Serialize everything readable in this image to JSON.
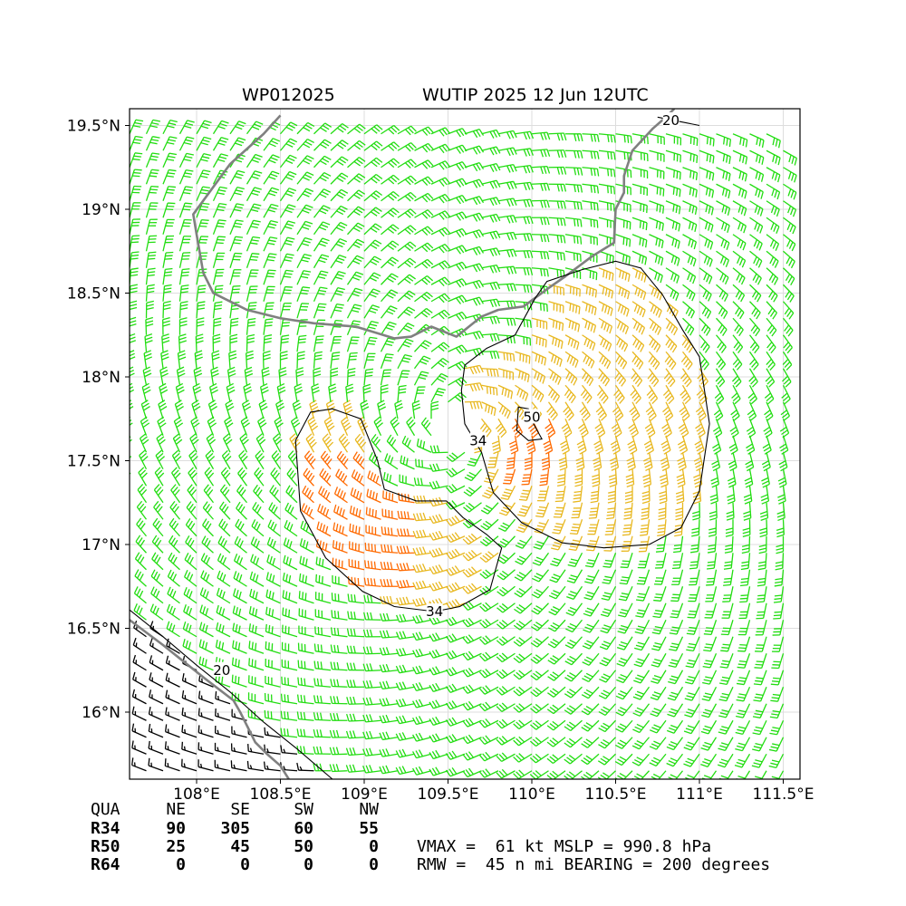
{
  "chart_data": {
    "type": "wind-barb-map",
    "title_left": "WP012025",
    "title_right": "WUTIP 2025 12 Jun 12UTC",
    "xlim": [
      107.6,
      111.6
    ],
    "ylim": [
      15.6,
      19.6
    ],
    "x_ticks": [
      {
        "value": 108.0,
        "label": "108°E"
      },
      {
        "value": 108.5,
        "label": "108.5°E"
      },
      {
        "value": 109.0,
        "label": "109°E"
      },
      {
        "value": 109.5,
        "label": "109.5°E"
      },
      {
        "value": 110.0,
        "label": "110°E"
      },
      {
        "value": 110.5,
        "label": "110.5°E"
      },
      {
        "value": 111.0,
        "label": "111°E"
      },
      {
        "value": 111.5,
        "label": "111.5°E"
      }
    ],
    "y_ticks": [
      {
        "value": 16.0,
        "label": "16°N"
      },
      {
        "value": 16.5,
        "label": "16.5°N"
      },
      {
        "value": 17.0,
        "label": "17°N"
      },
      {
        "value": 17.5,
        "label": "17.5°N"
      },
      {
        "value": 18.0,
        "label": "18°N"
      },
      {
        "value": 18.5,
        "label": "18.5°N"
      },
      {
        "value": 19.0,
        "label": "19°N"
      },
      {
        "value": 19.5,
        "label": "19.5°N"
      }
    ],
    "grid": true,
    "storm_center": {
      "lon": 109.55,
      "lat": 17.7
    },
    "rmw_nmi": 45,
    "wind_thresholds_kt": [
      34,
      50
    ],
    "barb_colors": {
      "below_34": "#22dd11",
      "34_to_50": "#e8b820",
      "above_50": "#ff6a00",
      "outside": "#000000"
    },
    "contours": [
      {
        "level": 34,
        "label": "34",
        "ring": [
          [
            109.49,
            17.26
          ],
          [
            109.31,
            17.26
          ],
          [
            109.12,
            17.33
          ],
          [
            109.08,
            17.5
          ],
          [
            108.98,
            17.75
          ],
          [
            108.81,
            17.81
          ],
          [
            108.68,
            17.79
          ],
          [
            108.59,
            17.62
          ],
          [
            108.62,
            17.2
          ],
          [
            108.77,
            16.92
          ],
          [
            108.99,
            16.72
          ],
          [
            109.18,
            16.63
          ],
          [
            109.42,
            16.6
          ],
          [
            109.57,
            16.63
          ],
          [
            109.75,
            16.73
          ],
          [
            109.82,
            16.98
          ],
          [
            109.73,
            17.06
          ],
          [
            109.59,
            17.16
          ]
        ]
      },
      {
        "level": 34,
        "label": "34",
        "ring": [
          [
            109.7,
            17.55
          ],
          [
            109.77,
            17.31
          ],
          [
            109.94,
            17.13
          ],
          [
            110.18,
            17.01
          ],
          [
            110.43,
            16.98
          ],
          [
            110.7,
            17.0
          ],
          [
            110.89,
            17.1
          ],
          [
            111.0,
            17.32
          ],
          [
            111.06,
            17.72
          ],
          [
            111.0,
            18.12
          ],
          [
            110.9,
            18.28
          ],
          [
            110.78,
            18.49
          ],
          [
            110.65,
            18.65
          ],
          [
            110.5,
            18.69
          ],
          [
            110.3,
            18.64
          ],
          [
            110.09,
            18.57
          ],
          [
            110.02,
            18.47
          ],
          [
            109.9,
            18.25
          ],
          [
            109.73,
            18.17
          ],
          [
            109.6,
            18.07
          ],
          [
            109.58,
            17.92
          ],
          [
            109.6,
            17.72
          ]
        ]
      },
      {
        "level": 50,
        "label": "50",
        "ring": [
          [
            109.92,
            17.82
          ],
          [
            109.98,
            17.81
          ],
          [
            110.01,
            17.72
          ],
          [
            110.06,
            17.63
          ],
          [
            109.98,
            17.62
          ],
          [
            109.91,
            17.68
          ]
        ]
      },
      {
        "level": 20,
        "label": "20",
        "line": [
          [
            107.6,
            16.61
          ],
          [
            107.8,
            16.45
          ],
          [
            108.0,
            16.28
          ],
          [
            108.2,
            16.12
          ],
          [
            108.4,
            15.94
          ],
          [
            108.6,
            15.78
          ],
          [
            108.81,
            15.6
          ]
        ]
      },
      {
        "level": 20,
        "label": "20",
        "line": [
          [
            110.75,
            19.55
          ],
          [
            110.9,
            19.52
          ],
          [
            111.0,
            19.5
          ]
        ]
      }
    ]
  },
  "coastline_color": "#808080",
  "radii_table": {
    "header": [
      "QUA",
      "NE",
      "SE",
      "SW",
      "NW"
    ],
    "rows": [
      {
        "label": "R34",
        "values": [
          "90",
          "305",
          "60",
          "55"
        ]
      },
      {
        "label": "R50",
        "values": [
          "25",
          "45",
          "50",
          "0"
        ]
      },
      {
        "label": "R64",
        "values": [
          "0",
          "0",
          "0",
          "0"
        ]
      }
    ]
  },
  "summary": {
    "line1": "VMAX =  61 kt MSLP = 990.8 hPa",
    "line2": "RMW =  45 n mi BEARING = 200 degrees"
  }
}
